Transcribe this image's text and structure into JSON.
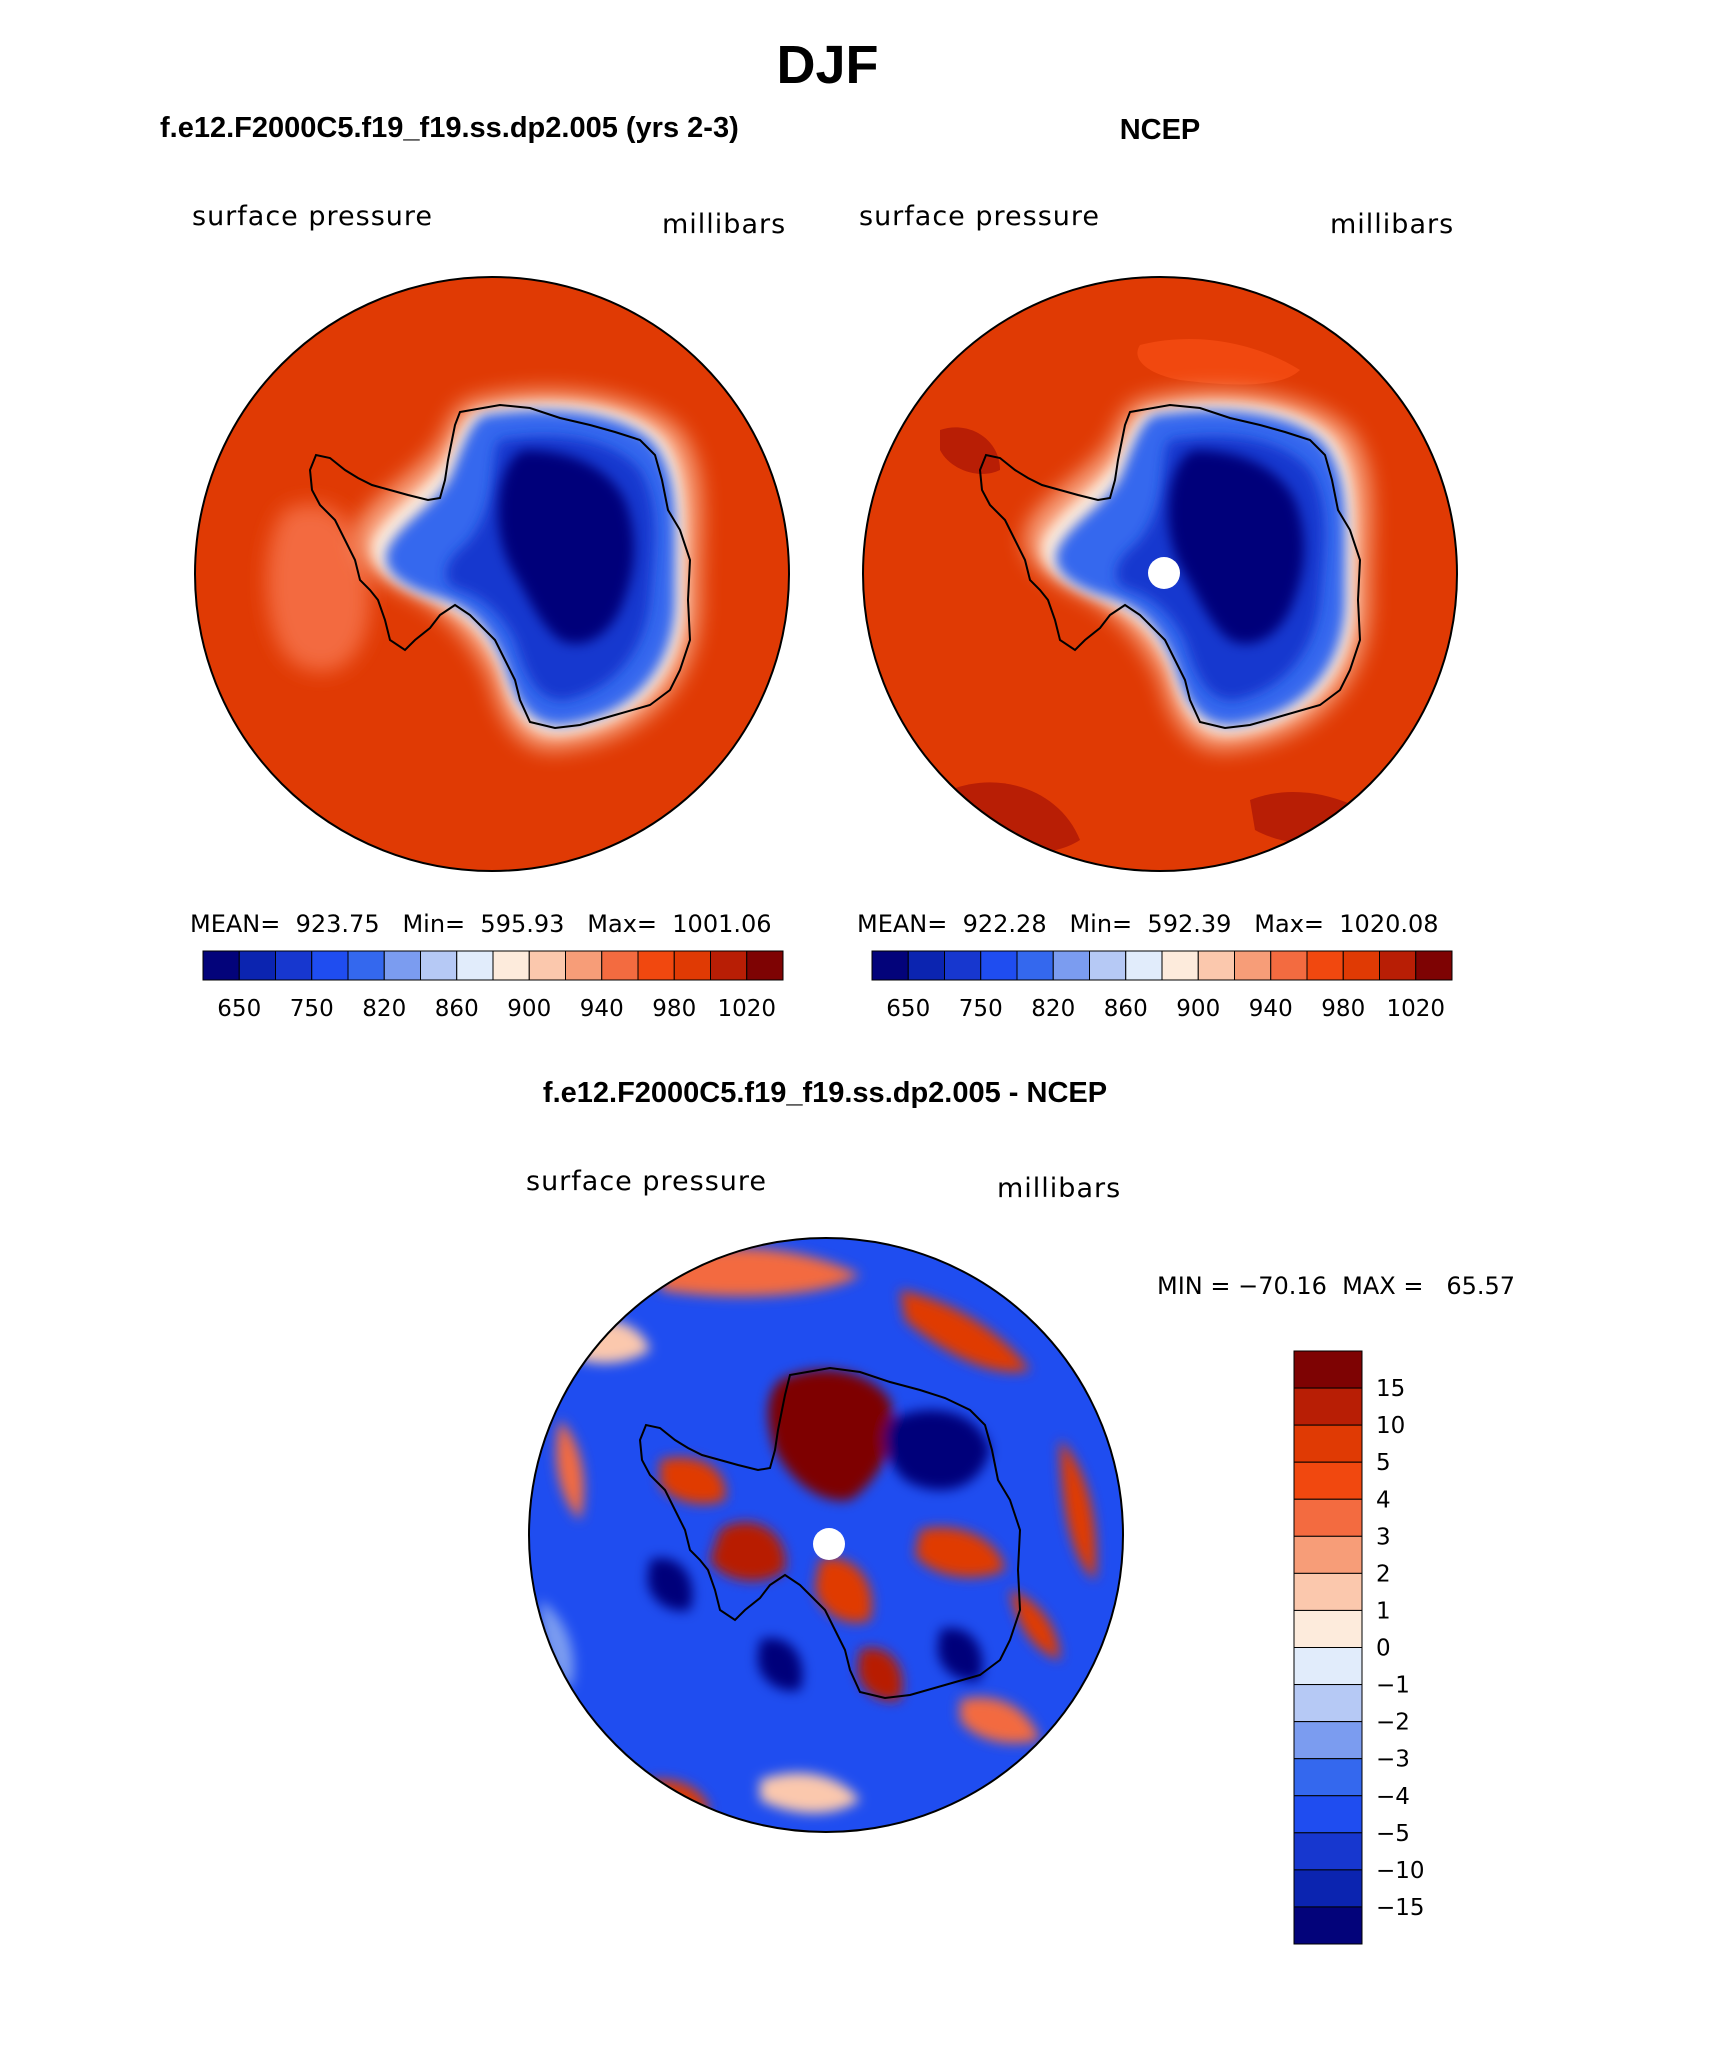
{
  "page": {
    "title": "DJF"
  },
  "panels": [
    {
      "title": "f.e12.F2000C5.f19_f19.ss.dp2.005 (yrs 2-3)",
      "field": "surface pressure",
      "units": "millibars",
      "stats": "MEAN=  923.75   Min=  595.93   Max=  1001.06"
    },
    {
      "title": "NCEP",
      "field": "surface pressure",
      "units": "millibars",
      "stats": "MEAN=  922.28   Min=  592.39   Max=  1020.08"
    },
    {
      "title": "f.e12.F2000C5.f19_f19.ss.dp2.005 - NCEP",
      "field": "surface pressure",
      "units": "millibars",
      "stats": "MIN = −70.16  MAX =   65.57"
    }
  ],
  "colors": {
    "abs_scale": [
      "#03037a",
      "#0b24b0",
      "#1737cf",
      "#1f4df0",
      "#3468ee",
      "#7b9cf0",
      "#b6c9f5",
      "#e1ecfb",
      "#fdebdc",
      "#fbc8ad",
      "#f79d78",
      "#f36b40",
      "#f1480f",
      "#e03a04",
      "#b81e05",
      "#7e0303"
    ],
    "diff_scale": [
      "#03037a",
      "#0b24b0",
      "#1737cf",
      "#1f4df0",
      "#3468ee",
      "#7b9cf0",
      "#b6c9f5",
      "#e1ecfb",
      "#fdebdc",
      "#fbc8ad",
      "#f79d78",
      "#f36b40",
      "#f1480f",
      "#e03a04",
      "#b81e05",
      "#7e0303"
    ]
  },
  "chart_data": [
    {
      "type": "heatmap",
      "title": "f.e12.F2000C5.f19_f19.ss.dp2.005 (yrs 2-3)",
      "variable": "surface pressure",
      "units": "millibars",
      "projection": "south polar stereographic",
      "mean": 923.75,
      "min": 595.93,
      "max": 1001.06,
      "levels": [
        650,
        700,
        750,
        800,
        820,
        840,
        860,
        880,
        900,
        920,
        940,
        960,
        980,
        1000,
        1020
      ],
      "colorbar_tick_labels": [
        "650",
        "750",
        "820",
        "860",
        "900",
        "940",
        "980",
        "1020"
      ]
    },
    {
      "type": "heatmap",
      "title": "NCEP",
      "variable": "surface pressure",
      "units": "millibars",
      "projection": "south polar stereographic",
      "mean": 922.28,
      "min": 592.39,
      "max": 1020.08,
      "levels": [
        650,
        700,
        750,
        800,
        820,
        840,
        860,
        880,
        900,
        920,
        940,
        960,
        980,
        1000,
        1020
      ],
      "colorbar_tick_labels": [
        "650",
        "750",
        "820",
        "860",
        "900",
        "940",
        "980",
        "1020"
      ]
    },
    {
      "type": "heatmap",
      "title": "f.e12.F2000C5.f19_f19.ss.dp2.005 - NCEP",
      "variable": "surface pressure",
      "units": "millibars",
      "projection": "south polar stereographic",
      "min": -70.16,
      "max": 65.57,
      "levels": [
        -15,
        -10,
        -5,
        -4,
        -3,
        -2,
        -1,
        0,
        1,
        2,
        3,
        4,
        5,
        10,
        15
      ],
      "colorbar_tick_labels": [
        "15",
        "10",
        "5",
        "4",
        "3",
        "2",
        "1",
        "0",
        "−1",
        "−2",
        "−3",
        "−4",
        "−5",
        "−10",
        "−15"
      ]
    }
  ]
}
